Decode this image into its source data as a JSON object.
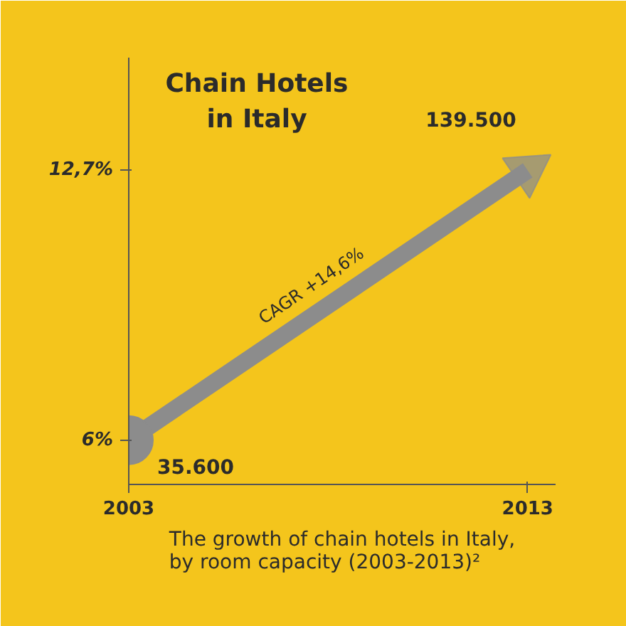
{
  "chart_data": {
    "type": "line",
    "title": "Chain Hotels\nin Italy",
    "x": [
      2003,
      2013
    ],
    "xlim": [
      2003,
      2013.7
    ],
    "xticks": [
      2003,
      2013
    ],
    "ylim": [
      4.9,
      15.5
    ],
    "yticks": [
      {
        "value": 6,
        "label": "6%"
      },
      {
        "value": 12.7,
        "label": "12,7%"
      }
    ],
    "series": [
      {
        "color": "#8c8c8c",
        "values": [
          6,
          12.7
        ]
      }
    ],
    "marker": "circle",
    "grid": false,
    "annotations": [
      {
        "text": "35.600",
        "x": 2003,
        "y": 6
      },
      {
        "text": "139.500",
        "x": 2013,
        "y": 12.7
      },
      "CAGR +14,6%",
      "The growth of chain hotels in Italy,\nby room capacity (2003-2013)²"
    ]
  }
}
